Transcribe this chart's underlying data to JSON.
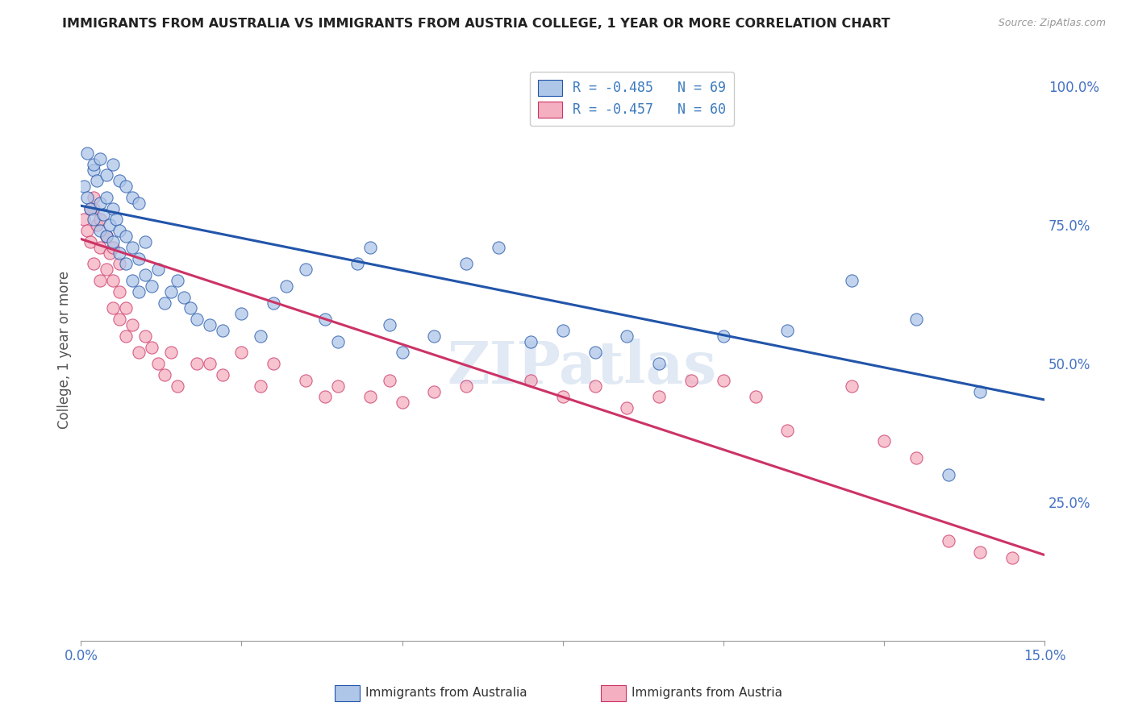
{
  "title": "IMMIGRANTS FROM AUSTRALIA VS IMMIGRANTS FROM AUSTRIA COLLEGE, 1 YEAR OR MORE CORRELATION CHART",
  "source": "Source: ZipAtlas.com",
  "ylabel": "College, 1 year or more",
  "xlim": [
    0.0,
    0.15
  ],
  "ylim": [
    0.0,
    1.05
  ],
  "xtick_positions": [
    0.0,
    0.025,
    0.05,
    0.075,
    0.1,
    0.125,
    0.15
  ],
  "xtick_labels": [
    "0.0%",
    "",
    "",
    "",
    "",
    "",
    "15.0%"
  ],
  "yticks_right": [
    0.0,
    0.25,
    0.5,
    0.75,
    1.0
  ],
  "ytick_labels_right": [
    "",
    "25.0%",
    "50.0%",
    "75.0%",
    "100.0%"
  ],
  "legend_label_australia": "R = -0.485   N = 69",
  "legend_label_austria": "R = -0.457   N = 60",
  "legend_text_color": "#3a7abf",
  "australia_scatter_x": [
    0.0005,
    0.001,
    0.0015,
    0.002,
    0.002,
    0.0025,
    0.003,
    0.003,
    0.0035,
    0.004,
    0.004,
    0.0045,
    0.005,
    0.005,
    0.0055,
    0.006,
    0.006,
    0.007,
    0.007,
    0.008,
    0.008,
    0.009,
    0.009,
    0.01,
    0.01,
    0.011,
    0.012,
    0.013,
    0.014,
    0.015,
    0.016,
    0.017,
    0.018,
    0.02,
    0.022,
    0.025,
    0.028,
    0.03,
    0.032,
    0.035,
    0.038,
    0.04,
    0.043,
    0.045,
    0.048,
    0.05,
    0.055,
    0.06,
    0.065,
    0.07,
    0.075,
    0.08,
    0.085,
    0.09,
    0.1,
    0.11,
    0.12,
    0.13,
    0.135,
    0.14,
    0.001,
    0.002,
    0.003,
    0.004,
    0.005,
    0.006,
    0.007,
    0.008,
    0.009
  ],
  "australia_scatter_y": [
    0.82,
    0.8,
    0.78,
    0.85,
    0.76,
    0.83,
    0.79,
    0.74,
    0.77,
    0.8,
    0.73,
    0.75,
    0.78,
    0.72,
    0.76,
    0.74,
    0.7,
    0.73,
    0.68,
    0.71,
    0.65,
    0.69,
    0.63,
    0.66,
    0.72,
    0.64,
    0.67,
    0.61,
    0.63,
    0.65,
    0.62,
    0.6,
    0.58,
    0.57,
    0.56,
    0.59,
    0.55,
    0.61,
    0.64,
    0.67,
    0.58,
    0.54,
    0.68,
    0.71,
    0.57,
    0.52,
    0.55,
    0.68,
    0.71,
    0.54,
    0.56,
    0.52,
    0.55,
    0.5,
    0.55,
    0.56,
    0.65,
    0.58,
    0.3,
    0.45,
    0.88,
    0.86,
    0.87,
    0.84,
    0.86,
    0.83,
    0.82,
    0.8,
    0.79
  ],
  "austria_scatter_x": [
    0.0005,
    0.001,
    0.0015,
    0.002,
    0.002,
    0.0025,
    0.003,
    0.003,
    0.004,
    0.004,
    0.0045,
    0.005,
    0.005,
    0.006,
    0.006,
    0.007,
    0.007,
    0.008,
    0.009,
    0.01,
    0.011,
    0.012,
    0.013,
    0.014,
    0.015,
    0.018,
    0.02,
    0.022,
    0.025,
    0.028,
    0.03,
    0.035,
    0.038,
    0.04,
    0.045,
    0.048,
    0.05,
    0.055,
    0.06,
    0.07,
    0.075,
    0.08,
    0.085,
    0.09,
    0.095,
    0.1,
    0.105,
    0.11,
    0.12,
    0.125,
    0.13,
    0.135,
    0.14,
    0.145,
    0.0015,
    0.002,
    0.003,
    0.004,
    0.005,
    0.006
  ],
  "austria_scatter_y": [
    0.76,
    0.74,
    0.72,
    0.78,
    0.68,
    0.75,
    0.71,
    0.65,
    0.73,
    0.67,
    0.7,
    0.65,
    0.6,
    0.63,
    0.58,
    0.6,
    0.55,
    0.57,
    0.52,
    0.55,
    0.53,
    0.5,
    0.48,
    0.52,
    0.46,
    0.5,
    0.5,
    0.48,
    0.52,
    0.46,
    0.5,
    0.47,
    0.44,
    0.46,
    0.44,
    0.47,
    0.43,
    0.45,
    0.46,
    0.47,
    0.44,
    0.46,
    0.42,
    0.44,
    0.47,
    0.47,
    0.44,
    0.38,
    0.46,
    0.36,
    0.33,
    0.18,
    0.16,
    0.15,
    0.78,
    0.8,
    0.76,
    0.73,
    0.71,
    0.68
  ],
  "australia_line_x": [
    0.0,
    0.15
  ],
  "australia_line_y": [
    0.785,
    0.435
  ],
  "austria_line_x": [
    0.0,
    0.15
  ],
  "austria_line_y": [
    0.725,
    0.155
  ],
  "scatter_color_australia": "#aec6e8",
  "scatter_color_austria": "#f4afc0",
  "line_color_australia": "#2255aa",
  "line_color_austria": "#cc3366",
  "watermark": "ZIPatlas",
  "background_color": "#ffffff",
  "grid_color": "#d0d0d0"
}
